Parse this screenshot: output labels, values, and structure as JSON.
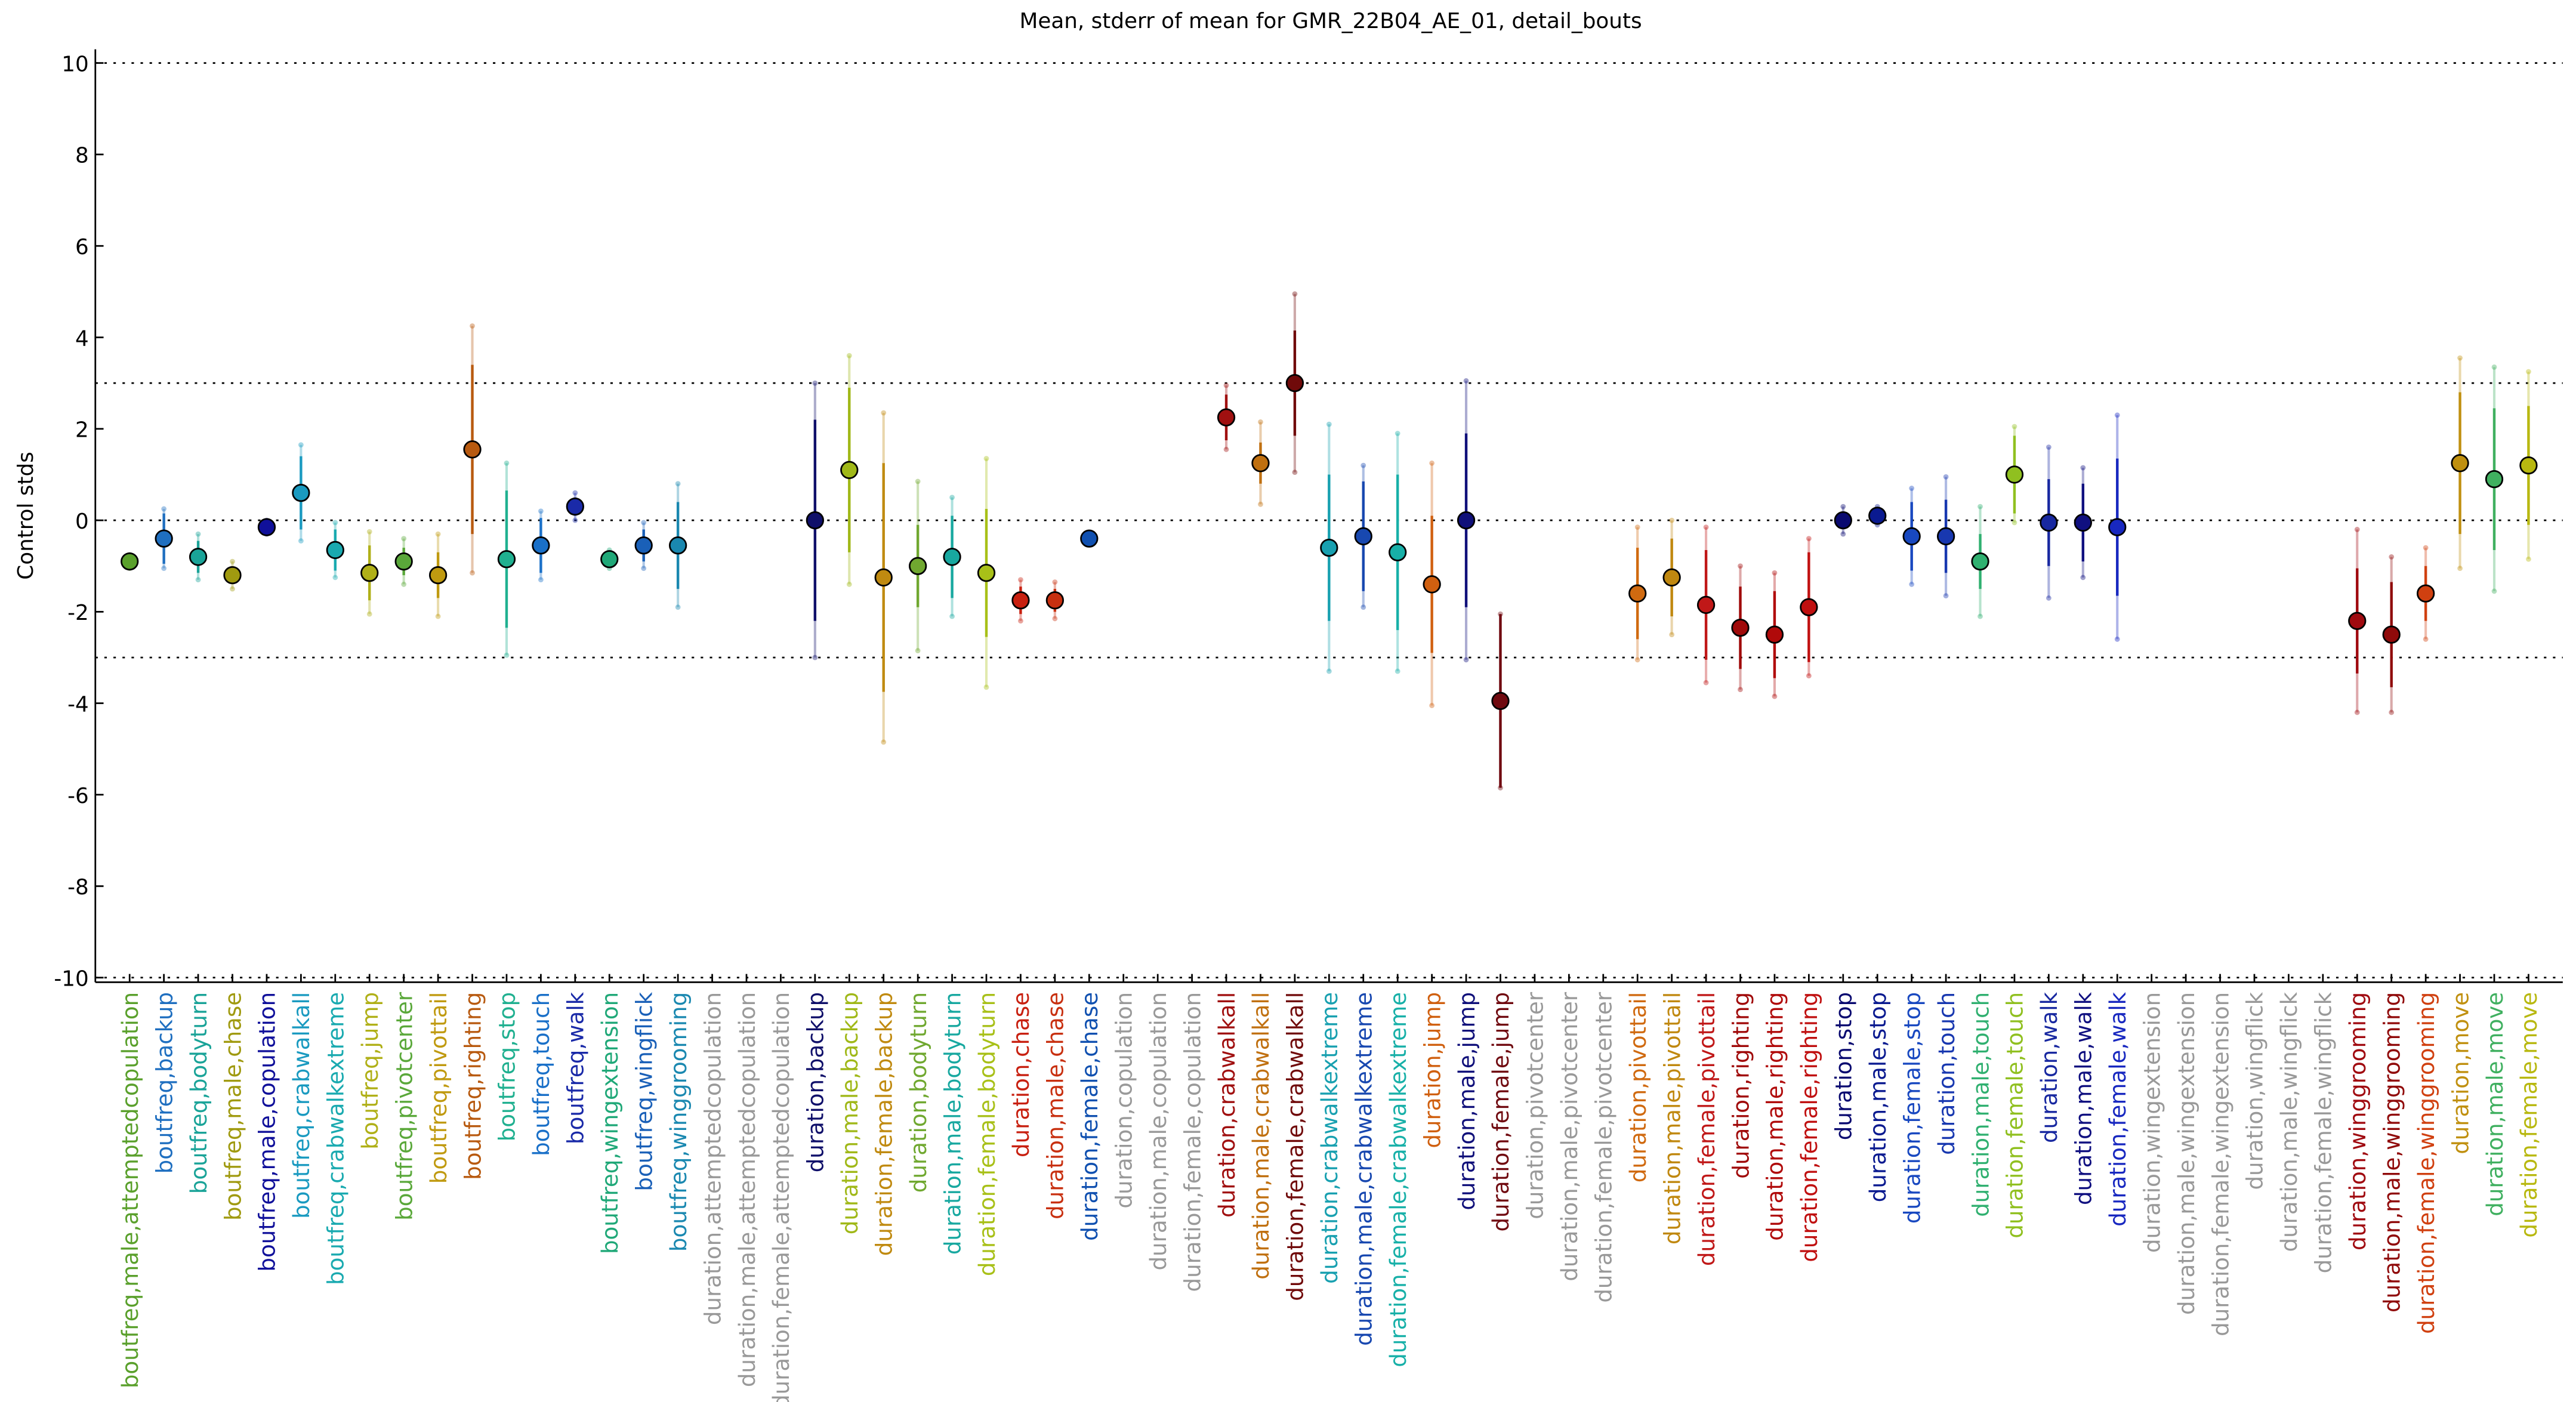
{
  "chart_data": {
    "type": "errorbar",
    "title": "Mean, stderr of mean for GMR_22B04_AE_01, detail_bouts",
    "ylabel": "Control stds",
    "ylim": [
      -10.1,
      10.3
    ],
    "yticks": [
      -10,
      -8,
      -6,
      -4,
      -2,
      0,
      2,
      4,
      6,
      8,
      10
    ],
    "hlines": [
      10,
      3,
      0,
      -3,
      -10
    ],
    "categories": [
      "boutfreq,male,attemptedcopulation",
      "boutfreq,backup",
      "boutfreq,bodyturn",
      "boutfreq,male,chase",
      "boutfreq,male,copulation",
      "boutfreq,crabwalkall",
      "boutfreq,crabwalkextreme",
      "boutfreq,jump",
      "boutfreq,pivotcenter",
      "boutfreq,pivottail",
      "boutfreq,righting",
      "boutfreq,stop",
      "boutfreq,touch",
      "boutfreq,walk",
      "boutfreq,wingextension",
      "boutfreq,wingflick",
      "boutfreq,winggrooming",
      "duration,attemptedcopulation",
      "duration,male,attemptedcopulation",
      "duration,female,attemptedcopulation",
      "duration,backup",
      "duration,male,backup",
      "duration,female,backup",
      "duration,bodyturn",
      "duration,male,bodyturn",
      "duration,female,bodyturn",
      "duration,chase",
      "duration,male,chase",
      "duration,female,chase",
      "duration,copulation",
      "duration,male,copulation",
      "duration,female,copulation",
      "duration,crabwalkall",
      "duration,male,crabwalkall",
      "duration,female,crabwalkall",
      "duration,crabwalkextreme",
      "duration,male,crabwalkextreme",
      "duration,female,crabwalkextreme",
      "duration,jump",
      "duration,male,jump",
      "duration,female,jump",
      "duration,pivotcenter",
      "duration,male,pivotcenter",
      "duration,female,pivotcenter",
      "duration,pivottail",
      "duration,male,pivottail",
      "duration,female,pivottail",
      "duration,righting",
      "duration,male,righting",
      "duration,female,righting",
      "duration,stop",
      "duration,male,stop",
      "duration,female,stop",
      "duration,touch",
      "duration,male,touch",
      "duration,female,touch",
      "duration,walk",
      "duration,male,walk",
      "duration,female,walk",
      "duration,wingextension",
      "duration,male,wingextension",
      "duration,female,wingextension",
      "duration,wingflick",
      "duration,male,wingflick",
      "duration,female,wingflick",
      "duration,winggrooming",
      "duration,male,winggrooming",
      "duration,female,winggrooming",
      "duration,move",
      "duration,male,move",
      "duration,female,move"
    ],
    "values": [
      -0.9,
      -0.4,
      -0.8,
      -1.2,
      -0.15,
      0.6,
      -0.65,
      -1.15,
      -0.9,
      -1.2,
      1.55,
      -0.85,
      -0.55,
      0.3,
      -0.85,
      -0.55,
      -0.55,
      null,
      null,
      null,
      0.0,
      1.1,
      -1.25,
      -1.0,
      -0.8,
      -1.15,
      -1.75,
      -1.75,
      -0.4,
      null,
      null,
      null,
      2.25,
      1.25,
      3.0,
      -0.6,
      -0.35,
      -0.7,
      -1.4,
      0.0,
      -3.95,
      null,
      null,
      null,
      -1.6,
      -1.25,
      -1.85,
      -2.35,
      -2.5,
      -1.9,
      0.0,
      0.1,
      -0.35,
      -0.35,
      -0.9,
      1.0,
      -0.05,
      -0.05,
      -0.15,
      null,
      null,
      null,
      null,
      null,
      null,
      -2.2,
      -2.5,
      -1.6,
      1.25,
      0.9,
      1.2
    ],
    "errors": [
      0.1,
      0.55,
      0.35,
      0.15,
      0.1,
      0.8,
      0.45,
      0.6,
      0.3,
      0.5,
      1.85,
      1.5,
      0.6,
      0.2,
      0.15,
      0.35,
      0.95,
      null,
      null,
      null,
      2.2,
      1.8,
      2.5,
      0.9,
      0.9,
      1.4,
      0.3,
      0.25,
      0.05,
      null,
      null,
      null,
      0.5,
      0.45,
      1.15,
      1.6,
      1.2,
      1.7,
      1.5,
      1.9,
      1.9,
      null,
      null,
      null,
      1.0,
      0.85,
      1.2,
      0.9,
      0.95,
      1.2,
      0.15,
      0.1,
      0.75,
      0.8,
      0.6,
      0.85,
      0.95,
      0.85,
      1.5,
      null,
      null,
      null,
      null,
      null,
      null,
      1.15,
      1.15,
      0.6,
      1.55,
      1.55,
      1.3
    ],
    "outer_errors": [
      0.15,
      0.65,
      0.5,
      0.3,
      0.15,
      1.05,
      0.6,
      0.9,
      0.5,
      0.9,
      2.7,
      2.1,
      0.75,
      0.3,
      0.2,
      0.5,
      1.35,
      null,
      null,
      null,
      3.0,
      2.5,
      3.6,
      1.85,
      1.3,
      2.5,
      0.45,
      0.4,
      0.1,
      null,
      null,
      null,
      0.7,
      0.9,
      1.95,
      2.7,
      1.55,
      2.6,
      2.65,
      3.05,
      1.9,
      null,
      null,
      null,
      1.45,
      1.25,
      1.7,
      1.35,
      1.35,
      1.5,
      0.3,
      0.2,
      1.05,
      1.3,
      1.2,
      1.05,
      1.65,
      1.2,
      2.45,
      null,
      null,
      null,
      null,
      null,
      null,
      2.0,
      1.7,
      1.0,
      2.3,
      2.45,
      2.05
    ],
    "colors": [
      "#5aa02c",
      "#1f6fc0",
      "#1aa398",
      "#a09a10",
      "#10109a",
      "#1a9ac0",
      "#1aaab0",
      "#b0b018",
      "#5aa83a",
      "#c09a10",
      "#b85a10",
      "#20b090",
      "#1a70c8",
      "#1a2aa8",
      "#20a878",
      "#1a60b8",
      "#1a88b0",
      "#999999",
      "#999999",
      "#999999",
      "#10106a",
      "#a0b818",
      "#c08a10",
      "#70a830",
      "#18a8a0",
      "#a8c018",
      "#c82010",
      "#c83010",
      "#1050b0",
      "#999999",
      "#999999",
      "#999999",
      "#a01010",
      "#c07010",
      "#700a0a",
      "#18a0b0",
      "#1848b0",
      "#18b0a8",
      "#d06010",
      "#10107a",
      "#700a10",
      "#999999",
      "#999999",
      "#999999",
      "#d06a10",
      "#c08810",
      "#c01818",
      "#a00a0a",
      "#b00a0a",
      "#c01010",
      "#0a0a70",
      "#0a1a90",
      "#1848c0",
      "#1838b0",
      "#30b070",
      "#90c020",
      "#1828a0",
      "#101080",
      "#1828c0",
      "#999999",
      "#999999",
      "#999999",
      "#999999",
      "#999999",
      "#999999",
      "#a00a10",
      "#900a0a",
      "#d04010",
      "#c09010",
      "#40b060",
      "#b8b810"
    ]
  }
}
